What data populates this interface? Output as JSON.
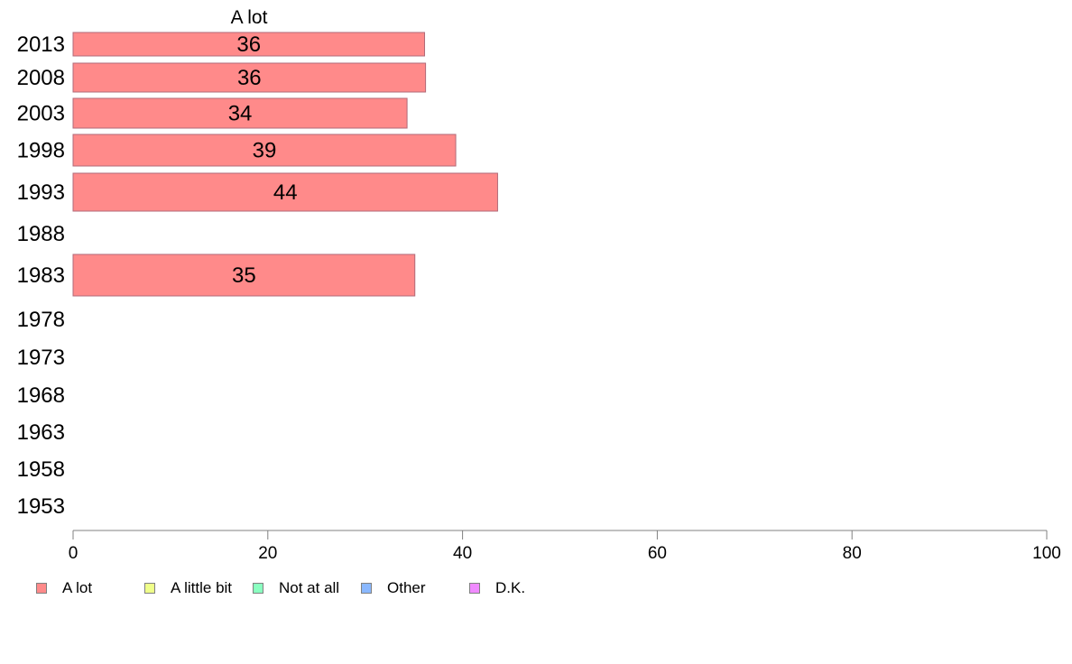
{
  "chart_data": {
    "type": "bar",
    "orientation": "horizontal",
    "title": "A lot",
    "xlabel": "",
    "ylabel": "",
    "xlim": [
      0,
      100
    ],
    "x_ticks": [
      0,
      20,
      40,
      60,
      80,
      100
    ],
    "grid": false,
    "categories": [
      "2013",
      "2008",
      "2003",
      "1998",
      "1993",
      "1988",
      "1983",
      "1978",
      "1973",
      "1968",
      "1963",
      "1958",
      "1953"
    ],
    "series": [
      {
        "name": "A lot",
        "color": "#ff8a8a",
        "values": [
          36.1,
          36.2,
          34.3,
          39.3,
          43.6,
          null,
          35.1,
          null,
          null,
          null,
          null,
          null,
          null
        ],
        "labels": [
          "36",
          "36",
          "34",
          "39",
          "44",
          "",
          "35",
          "",
          "",
          "",
          "",
          "",
          ""
        ]
      }
    ],
    "legend": {
      "placement": "bottom-left",
      "entries": [
        {
          "label": "A lot",
          "color": "#ff8a8a"
        },
        {
          "label": "A little bit",
          "color": "#efff8a"
        },
        {
          "label": "Not at all",
          "color": "#8affc0"
        },
        {
          "label": "Other",
          "color": "#8ab8ff"
        },
        {
          "label": "D.K.",
          "color": "#f08aff"
        }
      ]
    }
  }
}
